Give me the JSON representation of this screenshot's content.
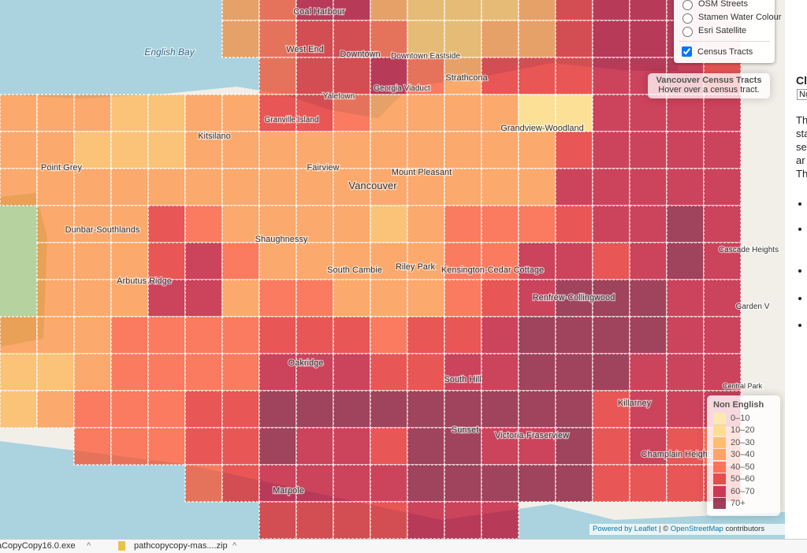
{
  "layers": {
    "items": [
      "OSM Streets",
      "Stamen Water Colour",
      "Esri Satellite"
    ],
    "overlay": "Census Tracts"
  },
  "info": {
    "title": "Vancouver Census Tracts",
    "hint": "Hover over a census tract."
  },
  "legend": {
    "title": "Non English",
    "items": [
      {
        "label": "0–10",
        "color": "#ffeda0"
      },
      {
        "label": "10–20",
        "color": "#fed976"
      },
      {
        "label": "20–30",
        "color": "#feb24c"
      },
      {
        "label": "30–40",
        "color": "#fd8d3c"
      },
      {
        "label": "40–50",
        "color": "#fc4e2a"
      },
      {
        "label": "50–60",
        "color": "#e31a1c"
      },
      {
        "label": "60–70",
        "color": "#bd0026"
      },
      {
        "label": "70+",
        "color": "#800026"
      }
    ]
  },
  "attribution": {
    "leaflet": "Powered by Leaflet",
    "separator": "| ©",
    "osm": "OpenStreetMap",
    "suffix": "contributors"
  },
  "places": [
    "English Bay",
    "Coal Harbour",
    "West End",
    "Downtown",
    "Downtown Eastside",
    "Strathcona",
    "Georgia Viaduct",
    "Yaletown",
    "Granville Island",
    "Kitsilano",
    "Fairview",
    "Mount Pleasant",
    "Vancouver",
    "Grandview-Woodland",
    "Point Grey",
    "Dunbar-Southlands",
    "Shaughnessy",
    "South Cambie",
    "Riley Park",
    "Kensington-Cedar Cottage",
    "Renfrew-Collingwood",
    "Arbutus Ridge",
    "Oakridge",
    "South Hill",
    "Sunset",
    "Victoria-Fraserview",
    "Killarney",
    "Champlain Heights",
    "Marpole",
    "Cascade Heights",
    "Garden V",
    "Central Park"
  ],
  "panel": {
    "heading": "Cl",
    "select": "No",
    "lines": [
      "Th",
      "sta",
      "se",
      "ar",
      "Th"
    ]
  },
  "downloads": [
    "aCopyCopy16.0.exe",
    "pathcopycopy-mas....zip"
  ]
}
